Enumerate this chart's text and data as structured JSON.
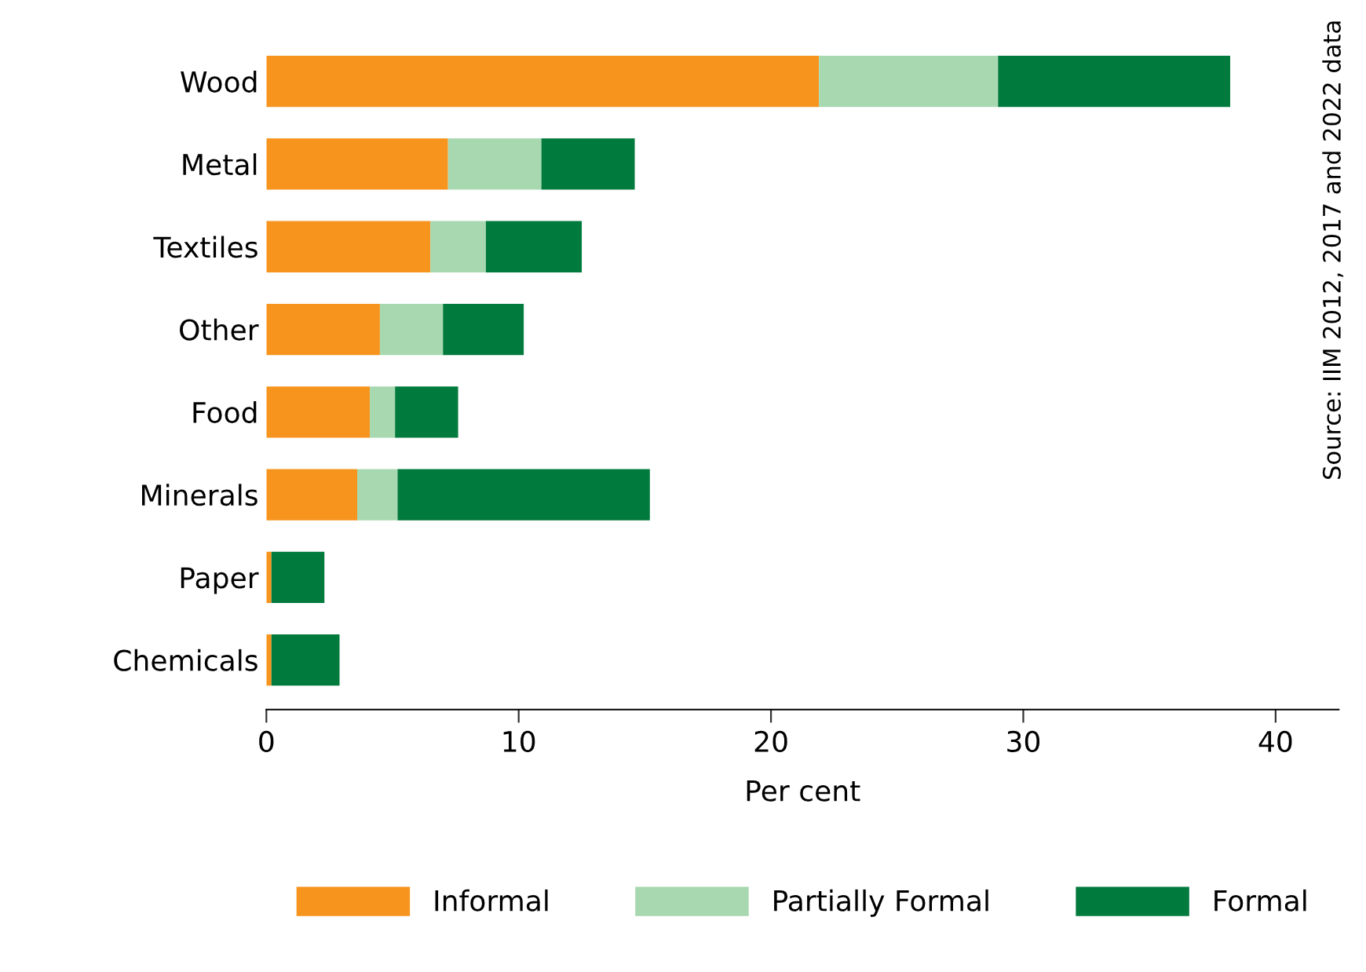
{
  "chart_data": {
    "type": "bar",
    "orientation": "horizontal",
    "stacked": true,
    "xlabel": "Per cent",
    "categories": [
      "Wood",
      "Metal",
      "Textiles",
      "Other",
      "Food",
      "Minerals",
      "Paper",
      "Chemicals"
    ],
    "series": [
      {
        "name": "Informal",
        "color": "#f7941d",
        "values": [
          21.9,
          7.2,
          6.5,
          4.5,
          4.1,
          3.6,
          0.2,
          0.2
        ]
      },
      {
        "name": "Partially Formal",
        "color": "#a8d8b0",
        "values": [
          7.1,
          3.7,
          2.2,
          2.5,
          1.0,
          1.6,
          0.0,
          null
        ]
      },
      {
        "name": "Formal",
        "color": "#007a3d",
        "values": [
          9.2,
          3.7,
          3.8,
          3.2,
          2.5,
          10.0,
          2.1,
          2.7
        ]
      }
    ],
    "xlim": [
      0,
      42.5
    ],
    "xticks": [
      0,
      10,
      20,
      30,
      40
    ],
    "grid": false,
    "legend": "bottom",
    "annotations": [
      "Source: IIM 2012, 2017 and 2022 data"
    ]
  }
}
